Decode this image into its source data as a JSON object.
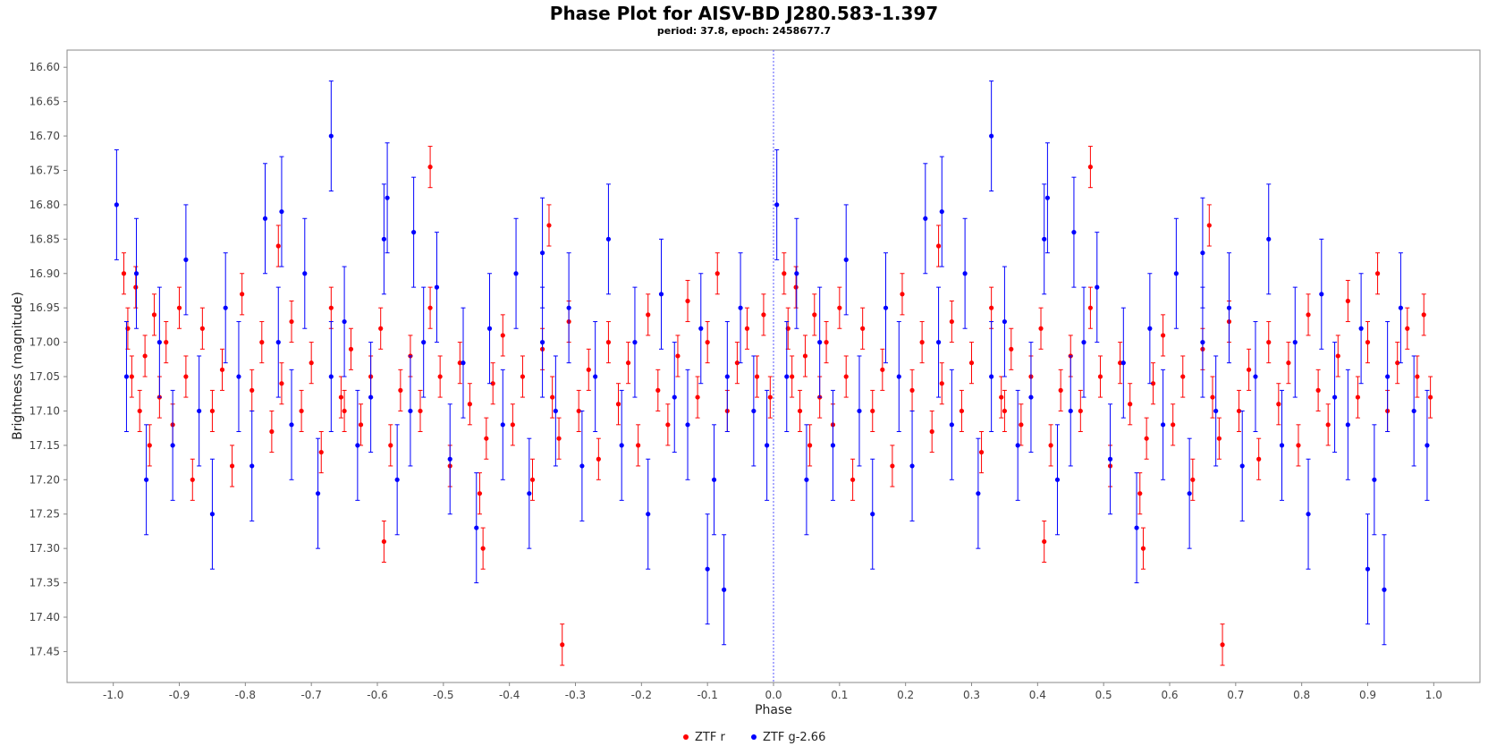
{
  "chart_data": {
    "type": "scatter",
    "title": "Phase Plot for AISV-BD J280.583-1.397",
    "subtitle": "period: 37.8, epoch: 2458677.7",
    "xlabel": "Phase",
    "ylabel": "Brightness (magnitude)",
    "xlim": [
      -1.07,
      1.07
    ],
    "ylim": [
      17.495,
      16.575
    ],
    "y_inverted": true,
    "x_ticks": [
      "-1.0",
      "-0.9",
      "-0.8",
      "-0.7",
      "-0.6",
      "-0.5",
      "-0.4",
      "-0.3",
      "-0.2",
      "-0.1",
      "0.0",
      "0.1",
      "0.2",
      "0.3",
      "0.4",
      "0.5",
      "0.6",
      "0.7",
      "0.8",
      "0.9",
      "1.0"
    ],
    "y_ticks": [
      "16.60",
      "16.65",
      "16.70",
      "16.75",
      "16.80",
      "16.85",
      "16.90",
      "16.95",
      "17.00",
      "17.05",
      "17.10",
      "17.15",
      "17.20",
      "17.25",
      "17.30",
      "17.35",
      "17.40",
      "17.45"
    ],
    "grid": false,
    "zero_line": true,
    "legend_position": "bottom-center",
    "legend": [
      {
        "label": "ZTF r",
        "color": "#ff0000"
      },
      {
        "label": "ZTF g-2.66",
        "color": "#0000ff"
      }
    ],
    "series": [
      {
        "name": "ZTF r",
        "color": "#ff0000",
        "x": [
          0.016,
          0.022,
          0.028,
          0.034,
          0.04,
          0.048,
          0.055,
          0.062,
          0.07,
          0.08,
          0.09,
          0.1,
          0.11,
          0.12,
          0.135,
          0.15,
          0.165,
          0.18,
          0.195,
          0.21,
          0.225,
          0.24,
          0.255,
          0.27,
          0.285,
          0.3,
          0.315,
          0.33,
          0.345,
          0.36,
          0.375,
          0.39,
          0.405,
          0.42,
          0.435,
          0.45,
          0.465,
          0.48,
          0.495,
          0.51,
          0.525,
          0.54,
          0.555,
          0.565,
          0.575,
          0.59,
          0.605,
          0.62,
          0.635,
          0.65,
          0.665,
          0.675,
          0.69,
          0.705,
          0.72,
          0.735,
          0.75,
          0.765,
          0.78,
          0.795,
          0.81,
          0.825,
          0.84,
          0.855,
          0.87,
          0.885,
          0.9,
          0.915,
          0.93,
          0.945,
          0.96,
          0.975,
          0.985,
          0.995,
          0.68,
          0.48,
          0.56,
          0.41,
          0.66,
          0.35,
          0.25
        ],
        "y": [
          16.9,
          16.98,
          17.05,
          16.92,
          17.1,
          17.02,
          17.15,
          16.96,
          17.08,
          17.0,
          17.12,
          16.95,
          17.05,
          17.2,
          16.98,
          17.1,
          17.04,
          17.18,
          16.93,
          17.07,
          17.0,
          17.13,
          17.06,
          16.97,
          17.1,
          17.03,
          17.16,
          16.95,
          17.08,
          17.01,
          17.12,
          17.05,
          16.98,
          17.15,
          17.07,
          17.02,
          17.1,
          16.95,
          17.05,
          17.18,
          17.03,
          17.09,
          17.22,
          17.14,
          17.06,
          16.99,
          17.12,
          17.05,
          17.2,
          17.01,
          17.08,
          17.14,
          16.97,
          17.1,
          17.04,
          17.17,
          17.0,
          17.09,
          17.03,
          17.15,
          16.96,
          17.07,
          17.12,
          17.02,
          16.94,
          17.08,
          17.0,
          16.9,
          17.1,
          17.03,
          16.98,
          17.05,
          16.96,
          17.08,
          17.44,
          16.745,
          17.3,
          17.29,
          16.83,
          17.1,
          16.86
        ],
        "err": [
          0.03,
          0.03,
          0.03,
          0.03,
          0.03,
          0.03,
          0.03,
          0.03,
          0.03,
          0.03,
          0.03,
          0.03,
          0.03,
          0.03,
          0.03,
          0.03,
          0.03,
          0.03,
          0.03,
          0.03,
          0.03,
          0.03,
          0.03,
          0.03,
          0.03,
          0.03,
          0.03,
          0.03,
          0.03,
          0.03,
          0.03,
          0.03,
          0.03,
          0.03,
          0.03,
          0.03,
          0.03,
          0.03,
          0.03,
          0.03,
          0.03,
          0.03,
          0.03,
          0.03,
          0.03,
          0.03,
          0.03,
          0.03,
          0.03,
          0.03,
          0.03,
          0.03,
          0.03,
          0.03,
          0.03,
          0.03,
          0.03,
          0.03,
          0.03,
          0.03,
          0.03,
          0.03,
          0.03,
          0.03,
          0.03,
          0.03,
          0.03,
          0.03,
          0.03,
          0.03,
          0.03,
          0.03,
          0.03,
          0.03,
          0.03,
          0.03,
          0.03,
          0.03,
          0.03,
          0.03,
          0.03
        ]
      },
      {
        "name": "ZTF g-2.66",
        "color": "#0000ff",
        "x": [
          0.005,
          0.02,
          0.035,
          0.05,
          0.07,
          0.09,
          0.11,
          0.13,
          0.15,
          0.17,
          0.19,
          0.21,
          0.23,
          0.25,
          0.27,
          0.29,
          0.31,
          0.33,
          0.35,
          0.37,
          0.39,
          0.41,
          0.43,
          0.45,
          0.47,
          0.49,
          0.51,
          0.53,
          0.55,
          0.57,
          0.59,
          0.61,
          0.63,
          0.65,
          0.67,
          0.69,
          0.71,
          0.73,
          0.75,
          0.77,
          0.79,
          0.81,
          0.83,
          0.85,
          0.87,
          0.89,
          0.91,
          0.93,
          0.95,
          0.97,
          0.99,
          0.33,
          0.255,
          0.415,
          0.455,
          0.65,
          0.9,
          0.925
        ],
        "y": [
          16.8,
          17.05,
          16.9,
          17.2,
          17.0,
          17.15,
          16.88,
          17.1,
          17.25,
          16.95,
          17.05,
          17.18,
          16.82,
          17.0,
          17.12,
          16.9,
          17.22,
          17.05,
          16.97,
          17.15,
          17.08,
          16.85,
          17.2,
          17.1,
          17.0,
          16.92,
          17.17,
          17.03,
          17.27,
          16.98,
          17.12,
          16.9,
          17.22,
          17.0,
          17.1,
          16.95,
          17.18,
          17.05,
          16.85,
          17.15,
          17.0,
          17.25,
          16.93,
          17.08,
          17.12,
          16.98,
          17.2,
          17.05,
          16.95,
          17.1,
          17.15,
          16.7,
          16.81,
          16.79,
          16.84,
          16.87,
          17.33,
          17.36
        ],
        "err": [
          0.08,
          0.08,
          0.08,
          0.08,
          0.08,
          0.08,
          0.08,
          0.08,
          0.08,
          0.08,
          0.08,
          0.08,
          0.08,
          0.08,
          0.08,
          0.08,
          0.08,
          0.08,
          0.08,
          0.08,
          0.08,
          0.08,
          0.08,
          0.08,
          0.08,
          0.08,
          0.08,
          0.08,
          0.08,
          0.08,
          0.08,
          0.08,
          0.08,
          0.08,
          0.08,
          0.08,
          0.08,
          0.08,
          0.08,
          0.08,
          0.08,
          0.08,
          0.08,
          0.08,
          0.08,
          0.08,
          0.08,
          0.08,
          0.08,
          0.08,
          0.08,
          0.08,
          0.08,
          0.08,
          0.08,
          0.08,
          0.08,
          0.08
        ]
      }
    ]
  }
}
